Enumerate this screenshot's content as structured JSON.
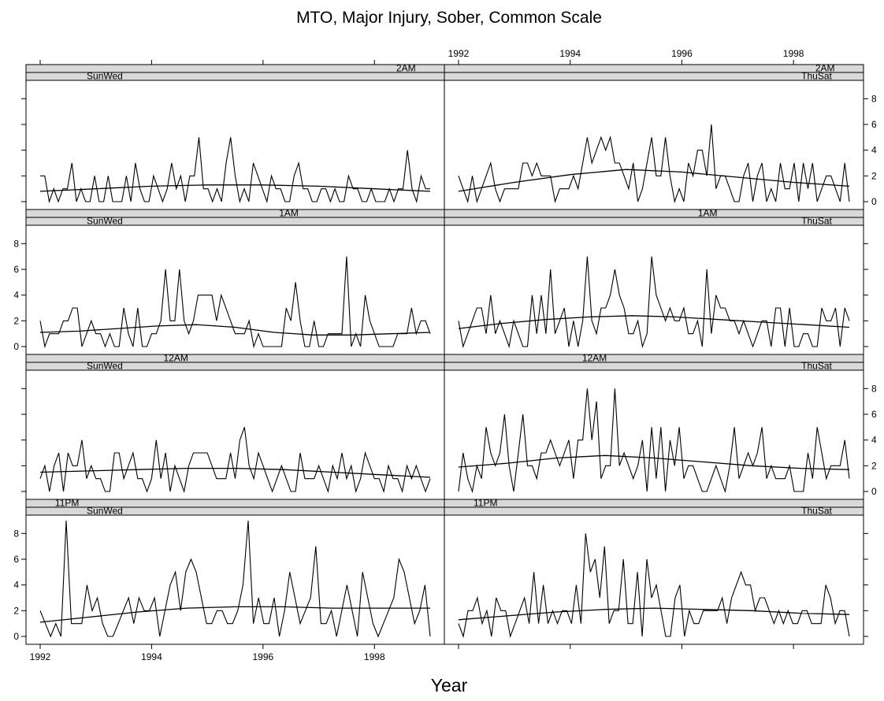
{
  "chart_data": {
    "type": "line",
    "title": "MTO, Major Injury, Sober, Common Scale",
    "xlabel": "Year",
    "ylabel": "",
    "xlim": [
      1992,
      1999
    ],
    "ylim": [
      0,
      9
    ],
    "x_ticks": [
      "1992",
      "1994",
      "1996",
      "1998"
    ],
    "y_ticks": [
      "0",
      "2",
      "4",
      "6",
      "8"
    ],
    "panels": [
      {
        "hour": "2AM",
        "days": "SunWed",
        "values": [
          2,
          2,
          0,
          1,
          0,
          1,
          1,
          3,
          0,
          1,
          0,
          0,
          2,
          0,
          0,
          2,
          0,
          0,
          0,
          2,
          0,
          3,
          1,
          0,
          0,
          2,
          1,
          0,
          1,
          3,
          1,
          2,
          0,
          2,
          2,
          5,
          1,
          1,
          0,
          1,
          0,
          3,
          5,
          2,
          0,
          1,
          0,
          3,
          2,
          1,
          0,
          2,
          1,
          1,
          0,
          0,
          2,
          3,
          1,
          1,
          0,
          0,
          1,
          1,
          0,
          1,
          0,
          0,
          2,
          1,
          1,
          0,
          0,
          1,
          0,
          0,
          0,
          1,
          0,
          1,
          1,
          4,
          1,
          0,
          2,
          1,
          1
        ],
        "smooth": [
          0.8,
          1.0,
          1.2,
          1.3,
          1.3,
          1.2,
          1.0,
          0.8
        ]
      },
      {
        "hour": "2AM",
        "days": "ThuSat",
        "values": [
          2,
          1,
          0,
          2,
          0,
          1,
          2,
          3,
          1,
          0,
          1,
          1,
          1,
          1,
          3,
          3,
          2,
          3,
          2,
          2,
          2,
          0,
          1,
          1,
          1,
          2,
          1,
          3,
          5,
          3,
          4,
          5,
          4,
          5,
          3,
          3,
          2,
          1,
          3,
          0,
          1,
          3,
          5,
          2,
          2,
          5,
          2,
          0,
          1,
          0,
          3,
          2,
          4,
          4,
          2,
          6,
          1,
          2,
          2,
          1,
          0,
          0,
          2,
          3,
          0,
          2,
          3,
          0,
          1,
          0,
          3,
          1,
          1,
          3,
          0,
          3,
          1,
          3,
          0,
          1,
          2,
          2,
          1,
          0,
          3,
          0
        ],
        "smooth": [
          0.8,
          1.5,
          2.1,
          2.5,
          2.3,
          1.9,
          1.5,
          1.2
        ]
      },
      {
        "hour": "1AM",
        "days": "SunWed",
        "values": [
          2,
          0,
          1,
          1,
          1,
          2,
          2,
          3,
          3,
          0,
          1,
          2,
          1,
          1,
          0,
          1,
          0,
          0,
          3,
          1,
          0,
          3,
          0,
          0,
          1,
          1,
          2,
          6,
          2,
          2,
          6,
          2,
          1,
          2,
          4,
          4,
          4,
          4,
          2,
          4,
          3,
          2,
          1,
          1,
          1,
          2,
          0,
          1,
          0,
          0,
          0,
          0,
          0,
          3,
          2,
          5,
          2,
          0,
          0,
          2,
          0,
          0,
          1,
          1,
          1,
          1,
          7,
          0,
          1,
          0,
          4,
          2,
          1,
          0,
          0,
          0,
          0,
          1,
          1,
          1,
          3,
          1,
          2,
          2,
          1
        ],
        "smooth": [
          1.1,
          1.2,
          1.4,
          1.6,
          1.7,
          1.5,
          1.1,
          0.9,
          0.9,
          1.0,
          1.1
        ]
      },
      {
        "hour": "1AM",
        "days": "ThuSat",
        "values": [
          2,
          0,
          1,
          2,
          3,
          3,
          1,
          4,
          1,
          2,
          1,
          0,
          2,
          1,
          0,
          0,
          4,
          1,
          4,
          1,
          6,
          1,
          2,
          3,
          0,
          2,
          0,
          2,
          7,
          2,
          1,
          3,
          3,
          4,
          6,
          4,
          3,
          1,
          1,
          2,
          0,
          1,
          7,
          4,
          3,
          2,
          3,
          2,
          2,
          3,
          1,
          1,
          2,
          0,
          6,
          1,
          4,
          3,
          3,
          2,
          2,
          1,
          2,
          1,
          0,
          1,
          2,
          2,
          0,
          3,
          3,
          0,
          3,
          0,
          0,
          1,
          1,
          0,
          0,
          3,
          2,
          2,
          3,
          0,
          3,
          2
        ],
        "smooth": [
          1.4,
          1.8,
          2.1,
          2.3,
          2.4,
          2.3,
          2.1,
          1.9,
          1.7,
          1.5
        ]
      },
      {
        "hour": "12AM",
        "days": "SunWed",
        "values": [
          1,
          2,
          0,
          2,
          3,
          0,
          3,
          2,
          2,
          4,
          1,
          2,
          1,
          1,
          0,
          0,
          3,
          3,
          1,
          2,
          3,
          1,
          1,
          0,
          1,
          4,
          1,
          3,
          0,
          2,
          1,
          0,
          2,
          3,
          3,
          3,
          3,
          2,
          1,
          1,
          1,
          3,
          1,
          4,
          5,
          2,
          1,
          3,
          2,
          1,
          0,
          1,
          2,
          1,
          0,
          0,
          3,
          1,
          1,
          1,
          2,
          1,
          0,
          2,
          1,
          3,
          1,
          2,
          0,
          1,
          3,
          2,
          1,
          1,
          0,
          2,
          1,
          1,
          0,
          2,
          1,
          2,
          1,
          0,
          1
        ],
        "smooth": [
          1.5,
          1.6,
          1.7,
          1.8,
          1.8,
          1.7,
          1.5,
          1.3,
          1.1
        ]
      },
      {
        "hour": "12AM",
        "days": "ThuSat",
        "values": [
          0,
          3,
          1,
          0,
          2,
          1,
          5,
          3,
          2,
          3,
          6,
          2,
          0,
          3,
          6,
          2,
          2,
          1,
          3,
          3,
          4,
          3,
          2,
          3,
          4,
          1,
          4,
          4,
          8,
          4,
          7,
          1,
          2,
          2,
          8,
          2,
          3,
          2,
          1,
          2,
          4,
          0,
          5,
          1,
          5,
          0,
          4,
          2,
          5,
          1,
          2,
          2,
          1,
          0,
          0,
          1,
          2,
          1,
          0,
          2,
          5,
          1,
          2,
          3,
          2,
          3,
          5,
          1,
          2,
          1,
          1,
          1,
          2,
          0,
          0,
          0,
          3,
          1,
          5,
          3,
          1,
          2,
          2,
          2,
          4,
          1
        ],
        "smooth": [
          1.9,
          2.2,
          2.6,
          2.8,
          2.6,
          2.3,
          2.0,
          1.8,
          1.7
        ]
      },
      {
        "hour": "11PM",
        "days": "SunWed",
        "values": [
          2,
          1,
          0,
          1,
          0,
          9,
          1,
          1,
          1,
          4,
          2,
          3,
          1,
          0,
          0,
          1,
          2,
          3,
          1,
          3,
          2,
          2,
          3,
          0,
          2,
          4,
          5,
          2,
          5,
          6,
          5,
          3,
          1,
          1,
          2,
          2,
          1,
          1,
          2,
          4,
          9,
          1,
          3,
          1,
          1,
          3,
          0,
          2,
          5,
          3,
          1,
          2,
          3,
          7,
          1,
          1,
          2,
          0,
          2,
          4,
          2,
          0,
          5,
          3,
          1,
          0,
          1,
          2,
          3,
          6,
          5,
          3,
          1,
          2,
          4,
          0
        ],
        "smooth": [
          1.1,
          1.5,
          1.9,
          2.2,
          2.3,
          2.3,
          2.2,
          2.2,
          2.2
        ]
      },
      {
        "hour": "11PM",
        "days": "ThuSat",
        "values": [
          1,
          0,
          2,
          2,
          3,
          1,
          2,
          0,
          3,
          2,
          2,
          0,
          1,
          2,
          3,
          1,
          5,
          1,
          4,
          1,
          2,
          1,
          2,
          2,
          1,
          4,
          1,
          8,
          5,
          6,
          3,
          7,
          1,
          2,
          2,
          6,
          1,
          1,
          5,
          0,
          6,
          3,
          4,
          2,
          0,
          0,
          3,
          4,
          0,
          2,
          1,
          1,
          2,
          2,
          2,
          2,
          3,
          1,
          3,
          4,
          5,
          4,
          4,
          2,
          3,
          3,
          2,
          1,
          2,
          1,
          2,
          1,
          1,
          2,
          2,
          1,
          1,
          1,
          4,
          3,
          1,
          2,
          2,
          0
        ],
        "smooth": [
          1.3,
          1.6,
          1.9,
          2.1,
          2.2,
          2.1,
          2.0,
          1.8,
          1.7
        ]
      }
    ]
  }
}
